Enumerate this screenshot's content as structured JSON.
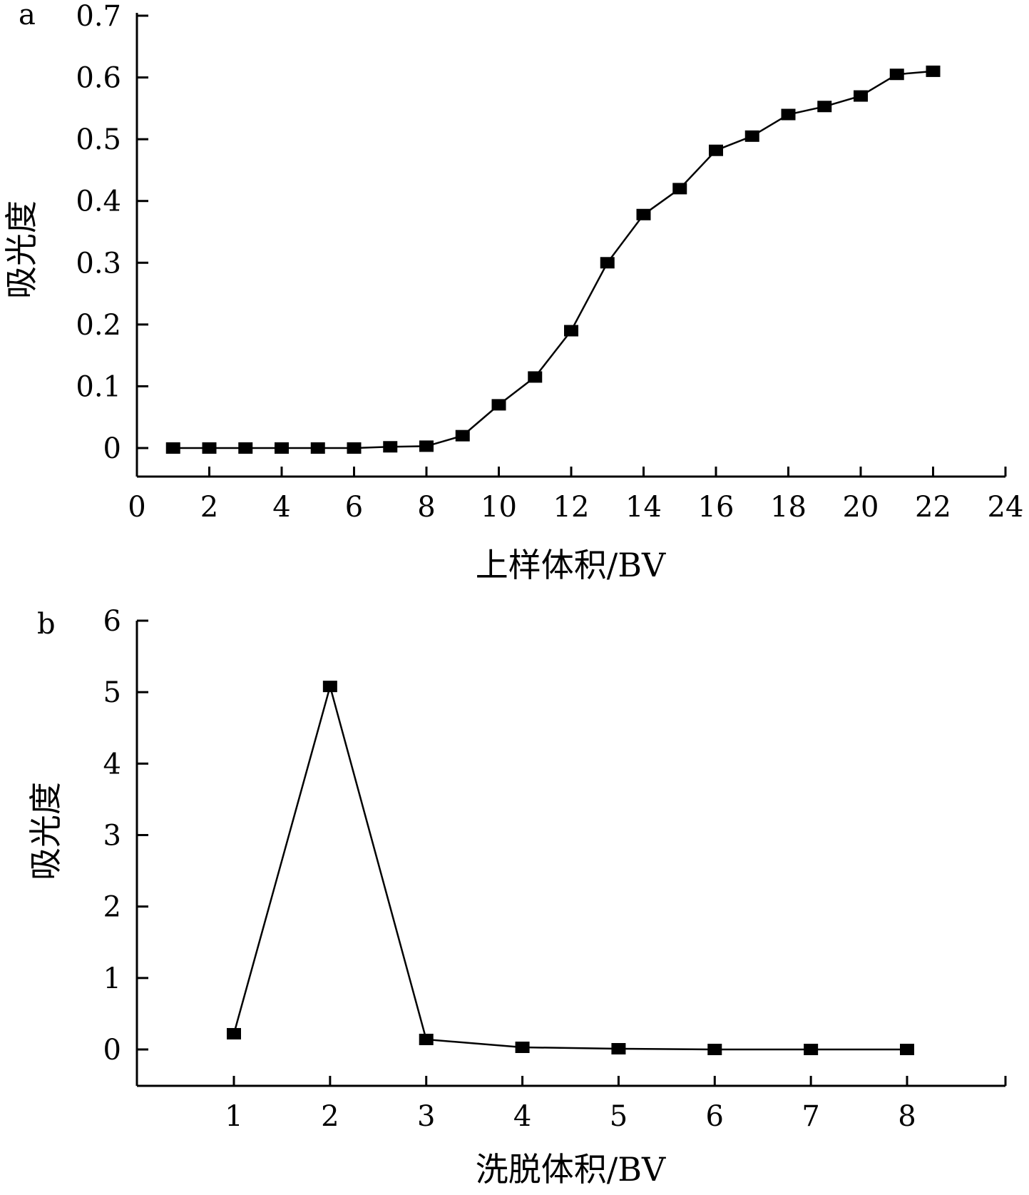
{
  "chart_data": [
    {
      "panel_label": "a",
      "type": "line",
      "xlabel": "上样体积/BV",
      "ylabel": "吸光度",
      "xlim": [
        0,
        24
      ],
      "ylim": [
        0,
        0.7
      ],
      "xticks": [
        "0",
        "2",
        "4",
        "6",
        "8",
        "10",
        "12",
        "14",
        "16",
        "18",
        "20",
        "22",
        "24"
      ],
      "yticks": [
        "0",
        "0.1",
        "0.2",
        "0.3",
        "0.4",
        "0.5",
        "0.6",
        "0.7"
      ],
      "marker": "square",
      "series": [
        {
          "x": [
            1,
            2,
            3,
            4,
            5,
            6,
            7,
            8,
            9,
            10,
            11,
            12,
            13,
            14,
            15,
            16,
            17,
            18,
            19,
            20,
            21,
            22
          ],
          "y": [
            0.0,
            0.0,
            0.0,
            0.0,
            0.0,
            0.0,
            0.002,
            0.003,
            0.02,
            0.07,
            0.115,
            0.19,
            0.3,
            0.378,
            0.42,
            0.482,
            0.505,
            0.54,
            0.553,
            0.57,
            0.605,
            0.61
          ]
        }
      ]
    },
    {
      "panel_label": "b",
      "type": "line",
      "xlabel": "洗脱体积/BV",
      "ylabel": "吸光度",
      "xlim": [
        0,
        9
      ],
      "ylim": [
        0,
        6
      ],
      "xticks": [
        "1",
        "2",
        "3",
        "4",
        "5",
        "6",
        "7",
        "8"
      ],
      "yticks": [
        "0",
        "1",
        "2",
        "3",
        "4",
        "5",
        "6"
      ],
      "marker": "square",
      "series": [
        {
          "x": [
            1,
            2,
            3,
            4,
            5,
            6,
            7,
            8
          ],
          "y": [
            0.22,
            5.08,
            0.14,
            0.03,
            0.01,
            0.0,
            0.0,
            0.0
          ]
        }
      ]
    }
  ]
}
